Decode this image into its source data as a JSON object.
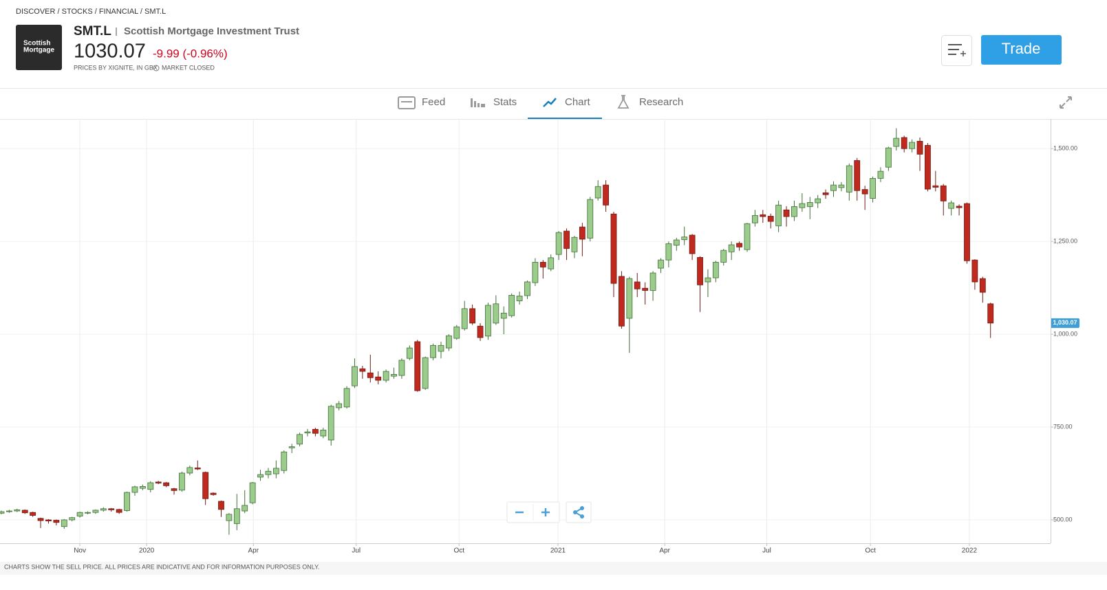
{
  "header": {
    "breadcrumb": "DISCOVER / STOCKS / FINANCIAL / SMT.L",
    "logo": [
      "Scottish",
      "Mortgage"
    ],
    "ticker": "SMT.L",
    "name": "Scottish Mortgage Investment Trust",
    "price": "1030.07",
    "change": "-9.99 (-0.96%)",
    "source": "PRICES BY XIGNITE, IN GBX",
    "status": "MARKET CLOSED",
    "trade": "Trade"
  },
  "tabs": [
    "Feed",
    "Stats",
    "Chart",
    "Research"
  ],
  "active_tab": "Chart",
  "footer": "CHARTS SHOW THE SELL PRICE. ALL PRICES ARE INDICATIVE AND FOR INFORMATION PURPOSES ONLY.",
  "chart_data": {
    "type": "candlestick",
    "categories": [
      null,
      null,
      null,
      null,
      null,
      null,
      null,
      null,
      null,
      null,
      null,
      null,
      null,
      null,
      null,
      null,
      null,
      null,
      null,
      null,
      null,
      null,
      null,
      null,
      null,
      null,
      null,
      null,
      null,
      null,
      null,
      null,
      null,
      null,
      null,
      null,
      null,
      null,
      null,
      null,
      null,
      null,
      null,
      null,
      null,
      null,
      null,
      null,
      null,
      null,
      null,
      null,
      null,
      null,
      null,
      null,
      null,
      null,
      null,
      null,
      null,
      null,
      null,
      null,
      null,
      null,
      null,
      null,
      null,
      null,
      null,
      null,
      null,
      null,
      null,
      null,
      null,
      null,
      null,
      null,
      null,
      null,
      null,
      null,
      null,
      null,
      null,
      null,
      null,
      null,
      null,
      null,
      null,
      null,
      null,
      null,
      null,
      null,
      null,
      null,
      null,
      null,
      null,
      null,
      null,
      null,
      null,
      null,
      null,
      null,
      null,
      null,
      null,
      null,
      null,
      null,
      null,
      null,
      null,
      null,
      null,
      null,
      null,
      null,
      null,
      null,
      null
    ],
    "open": [
      518,
      522,
      524,
      526,
      520,
      504,
      500,
      499,
      482,
      500,
      510,
      518,
      520,
      526,
      530,
      528,
      525,
      574,
      585,
      582,
      602,
      600,
      584,
      580,
      626,
      640,
      628,
      572,
      550,
      498,
      490,
      524,
      546,
      615,
      622,
      624,
      633,
      694,
      704,
      734,
      744,
      726,
      715,
      802,
      804,
      861,
      907,
      896,
      885,
      876,
      887,
      889,
      935,
      980,
      854,
      937,
      954,
      963,
      989,
      1015,
      1069,
      1022,
      995,
      1030,
      1043,
      1050,
      1090,
      1104,
      1139,
      1194,
      1176,
      1215,
      1278,
      1222,
      1289,
      1259,
      1367,
      1402,
      1324,
      1156,
      1043,
      1141,
      1124,
      1118,
      1178,
      1200,
      1240,
      1255,
      1267,
      1207,
      1141,
      1152,
      1194,
      1222,
      1245,
      1228,
      1300,
      1322,
      1318,
      1292,
      1335,
      1317,
      1341,
      1344,
      1354,
      1381,
      1387,
      1395,
      1383,
      1468,
      1390,
      1366,
      1420,
      1450,
      1506,
      1530,
      1500,
      1520,
      1509,
      1400,
      1400,
      1339,
      1345,
      1352,
      1200,
      1150,
      1082
    ],
    "high": [
      525,
      527,
      530,
      528,
      522,
      506,
      502,
      501,
      502,
      508,
      522,
      523,
      528,
      534,
      532,
      530,
      576,
      592,
      595,
      604,
      605,
      602,
      586,
      630,
      646,
      660,
      630,
      574,
      552,
      518,
      570,
      580,
      602,
      635,
      640,
      660,
      687,
      705,
      735,
      745,
      748,
      748,
      810,
      820,
      860,
      935,
      915,
      945,
      900,
      905,
      910,
      935,
      970,
      985,
      940,
      975,
      980,
      1000,
      1025,
      1090,
      1080,
      1030,
      1085,
      1105,
      1075,
      1110,
      1115,
      1145,
      1205,
      1200,
      1215,
      1278,
      1285,
      1265,
      1300,
      1370,
      1415,
      1415,
      1330,
      1170,
      1155,
      1165,
      1140,
      1170,
      1205,
      1250,
      1260,
      1290,
      1270,
      1210,
      1175,
      1198,
      1230,
      1250,
      1250,
      1300,
      1335,
      1335,
      1325,
      1360,
      1345,
      1360,
      1380,
      1370,
      1375,
      1390,
      1412,
      1410,
      1460,
      1475,
      1400,
      1425,
      1450,
      1505,
      1555,
      1535,
      1525,
      1530,
      1515,
      1440,
      1405,
      1360,
      1350,
      1355,
      1202,
      1155,
      1085
    ],
    "low": [
      515,
      519,
      521,
      516,
      508,
      478,
      490,
      485,
      476,
      496,
      506,
      515,
      516,
      522,
      522,
      516,
      522,
      565,
      580,
      574,
      596,
      588,
      568,
      576,
      620,
      634,
      540,
      565,
      508,
      460,
      472,
      518,
      542,
      605,
      612,
      612,
      625,
      680,
      698,
      725,
      725,
      720,
      700,
      795,
      800,
      855,
      880,
      870,
      865,
      870,
      880,
      880,
      930,
      845,
      850,
      930,
      935,
      955,
      985,
      1010,
      1025,
      982,
      985,
      1025,
      1000,
      1045,
      1080,
      1095,
      1130,
      1150,
      1170,
      1200,
      1200,
      1205,
      1210,
      1250,
      1360,
      1330,
      1100,
      1015,
      950,
      1100,
      1080,
      1090,
      1165,
      1180,
      1225,
      1240,
      1200,
      1060,
      1100,
      1140,
      1185,
      1200,
      1225,
      1222,
      1290,
      1300,
      1285,
      1275,
      1290,
      1305,
      1330,
      1310,
      1340,
      1365,
      1370,
      1385,
      1360,
      1360,
      1335,
      1355,
      1410,
      1440,
      1495,
      1490,
      1490,
      1440,
      1385,
      1385,
      1320,
      1320,
      1320,
      1190,
      1120,
      1085,
      990
    ],
    "close": [
      522,
      524,
      527,
      519,
      512,
      498,
      497,
      493,
      500,
      506,
      520,
      520,
      526,
      530,
      527,
      520,
      574,
      589,
      590,
      600,
      599,
      592,
      579,
      626,
      641,
      637,
      557,
      568,
      528,
      515,
      530,
      539,
      600,
      622,
      631,
      639,
      683,
      697,
      730,
      737,
      733,
      742,
      806,
      813,
      854,
      913,
      900,
      883,
      876,
      900,
      892,
      930,
      963,
      848,
      937,
      970,
      970,
      996,
      1020,
      1069,
      1030,
      991,
      1078,
      1082,
      1057,
      1105,
      1103,
      1141,
      1194,
      1181,
      1206,
      1274,
      1231,
      1261,
      1256,
      1363,
      1398,
      1348,
      1137,
      1022,
      1150,
      1122,
      1118,
      1165,
      1200,
      1244,
      1254,
      1262,
      1217,
      1133,
      1152,
      1194,
      1226,
      1241,
      1235,
      1298,
      1320,
      1317,
      1304,
      1348,
      1317,
      1344,
      1352,
      1355,
      1365,
      1376,
      1402,
      1402,
      1454,
      1387,
      1378,
      1420,
      1439,
      1502,
      1528,
      1500,
      1517,
      1485,
      1391,
      1396,
      1359,
      1354,
      1341,
      1198,
      1141,
      1113,
      1030.07
    ],
    "up_color": "#9ccc8b",
    "up_border": "#3f6e36",
    "down_color": "#c0291d",
    "down_border": "#6e1a12",
    "xlim": [
      -0.175,
      133.65
    ],
    "ylim": [
      437,
      1580
    ],
    "xticks": [
      {
        "value": 10,
        "label": "Nov"
      },
      {
        "value": 18.5,
        "label": "2020"
      },
      {
        "value": 32.1,
        "label": "Apr"
      },
      {
        "value": 45.2,
        "label": "Jul"
      },
      {
        "value": 58.3,
        "label": "Oct"
      },
      {
        "value": 70.9,
        "label": "2021"
      },
      {
        "value": 84.5,
        "label": "Apr"
      },
      {
        "value": 97.5,
        "label": "Jul"
      },
      {
        "value": 110.7,
        "label": "Oct"
      },
      {
        "value": 123.3,
        "label": "2022"
      }
    ],
    "yticks": [
      {
        "value": 500,
        "label": "500.00"
      },
      {
        "value": 750,
        "label": "750.00"
      },
      {
        "value": 1000,
        "label": "1,000.00"
      },
      {
        "value": 1250,
        "label": "1,250.00"
      },
      {
        "value": 1500,
        "label": "1,500.00"
      }
    ],
    "grid": true,
    "price_tag": {
      "value": 1030.07,
      "label": "1,030.07"
    },
    "price_tag_color": "#3d9fd6"
  }
}
